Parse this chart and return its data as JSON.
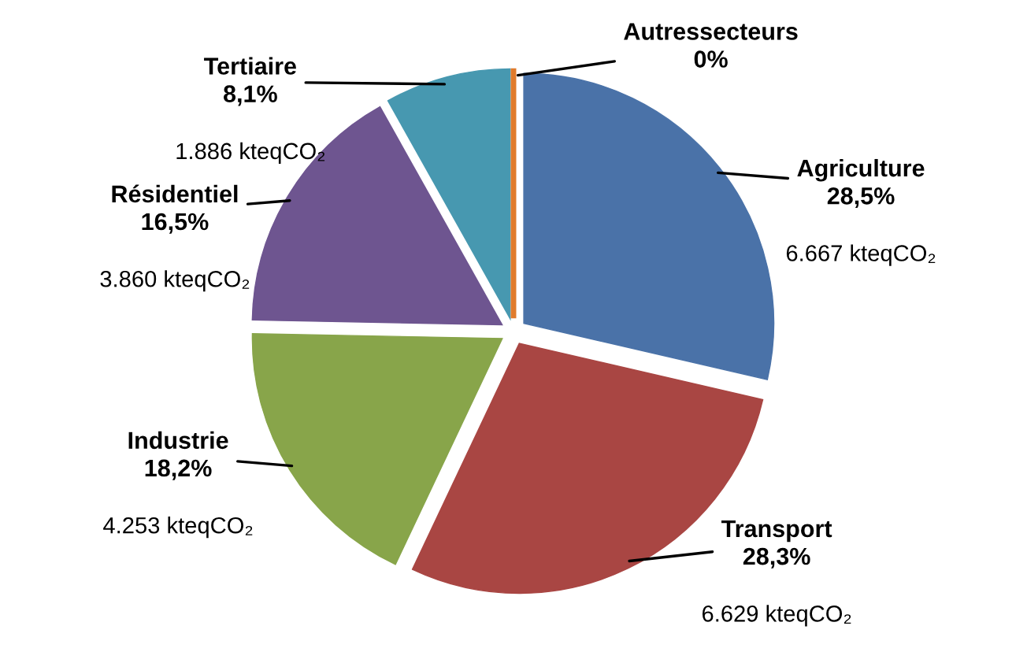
{
  "chart_data": {
    "type": "pie",
    "categories": [
      "Agriculture",
      "Transport",
      "Industrie",
      "Résidentiel",
      "Tertiaire",
      "Autressecteurs"
    ],
    "values": [
      28.5,
      28.3,
      18.2,
      16.5,
      8.1,
      0
    ],
    "value_labels": [
      "28,5%",
      "28,3%",
      "18,2%",
      "16,5%",
      "8,1%",
      "0%"
    ],
    "colors": [
      "#4a72a8",
      "#a94643",
      "#88a54a",
      "#6e5590",
      "#4798b0",
      "#e07b2c"
    ],
    "annotations": [
      {
        "text": "6.667 kteqCO₂",
        "x": "Agriculture"
      },
      {
        "text": "6.629 kteqCO₂",
        "x": "Transport"
      },
      {
        "text": "4.253 kteqCO₂",
        "x": "Industrie"
      },
      {
        "text": "3.860 kteqCO₂",
        "x": "Résidentiel"
      },
      {
        "text": "1.886 kteqCO₂",
        "x": "Tertiaire"
      }
    ],
    "legend": false
  }
}
